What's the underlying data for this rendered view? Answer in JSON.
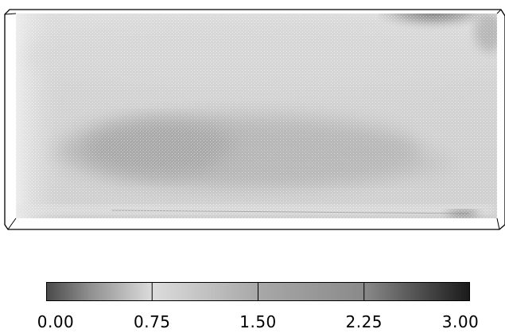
{
  "colors": {
    "background": "#ffffff",
    "outline": "#000000",
    "field_base": "#cdcdcd",
    "field_dark": "#9c9c9c",
    "field_light": "#d9d9d9"
  },
  "colorbar": {
    "min": 0.0,
    "max": 3.0,
    "dividers": [
      0.75,
      1.5,
      2.25
    ],
    "stops": [
      {
        "value": 0.0,
        "color": "#4a4a4a"
      },
      {
        "value": 0.3,
        "color": "#8e8e8e"
      },
      {
        "value": 0.75,
        "color": "#dcdcdc"
      },
      {
        "value": 1.5,
        "color": "#a8a8a8"
      },
      {
        "value": 2.25,
        "color": "#8a8a8a"
      },
      {
        "value": 3.0,
        "color": "#1a1a1a"
      }
    ],
    "ticks": [
      "0.00",
      "0.75",
      "1.50",
      "2.25",
      "3.00"
    ]
  }
}
